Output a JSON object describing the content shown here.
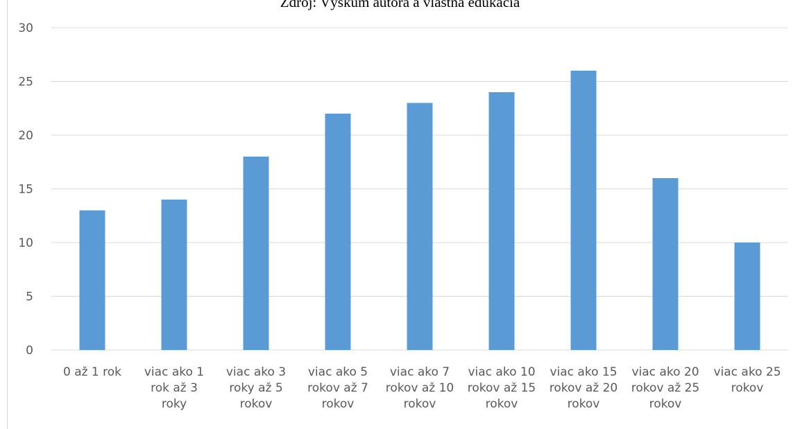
{
  "source_caption": "Zdroj: Výskum autora a vlastná edukácia",
  "colors": {
    "bar": "#5b9bd5",
    "grid": "#d9d9d9",
    "text": "#595959"
  },
  "chart_data": {
    "type": "bar",
    "categories": [
      [
        "0 až 1 rok"
      ],
      [
        "viac ako 1",
        "rok až 3",
        "roky"
      ],
      [
        "viac ako 3",
        "roky až 5",
        "rokov"
      ],
      [
        "viac ako 5",
        "rokov až 7",
        "rokov"
      ],
      [
        "viac ako 7",
        "rokov až 10",
        "rokov"
      ],
      [
        "viac ako 10",
        "rokov až 15",
        "rokov"
      ],
      [
        "viac ako 15",
        "rokov až 20",
        "rokov"
      ],
      [
        "viac ako 20",
        "rokov až 25",
        "rokov"
      ],
      [
        "viac ako 25",
        "rokov"
      ]
    ],
    "values": [
      13,
      14,
      18,
      22,
      23,
      24,
      26,
      16,
      10
    ],
    "ylim": [
      0,
      30
    ],
    "yticks": [
      0,
      5,
      10,
      15,
      20,
      25,
      30
    ],
    "grid": true,
    "legend": "none"
  }
}
